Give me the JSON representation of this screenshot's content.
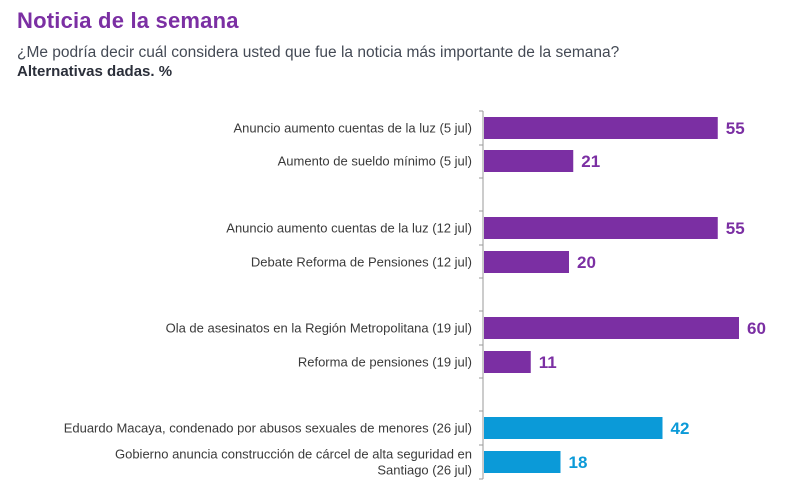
{
  "header": {
    "title": "Noticia de la semana",
    "question": "¿Me podría decir cuál considera usted que fue la noticia más importante de la semana?",
    "note": "Alternativas dadas. %"
  },
  "colors": {
    "title": "#7b2fa3",
    "purple_bar": "#7b2fa3",
    "blue_bar": "#0b9ad8",
    "axis": "#9a9a9a"
  },
  "chart_data": {
    "type": "bar",
    "orientation": "horizontal",
    "title": "Noticia de la semana",
    "subtitle": "¿Me podría decir cuál considera usted que fue la noticia más importante de la semana?",
    "xlabel": "",
    "ylabel": "",
    "unit": "%",
    "xlim": [
      0,
      60
    ],
    "grid": false,
    "legend": "none",
    "categories": [
      [
        "Anuncio aumento cuentas de la luz (5 jul)"
      ],
      [
        "Aumento de sueldo mínimo (5 jul)"
      ],
      [
        "Anuncio aumento cuentas de la luz (12 jul)"
      ],
      [
        "Debate Reforma de Pensiones (12 jul)"
      ],
      [
        "Ola de asesinatos en la Región Metropolitana (19 jul)"
      ],
      [
        "Reforma de pensiones (19 jul)"
      ],
      [
        "Eduardo Macaya, condenado por abusos sexuales de menores (26 jul)"
      ],
      [
        "Gobierno anuncia construcción de cárcel de alta seguridad en",
        "Santiago (26 jul)"
      ]
    ],
    "values": [
      55,
      21,
      55,
      20,
      60,
      11,
      42,
      18
    ],
    "groups": [
      "5 jul",
      "5 jul",
      "12 jul",
      "12 jul",
      "19 jul",
      "19 jul",
      "26 jul",
      "26 jul"
    ],
    "bar_colors": [
      "purple",
      "purple",
      "purple",
      "purple",
      "purple",
      "purple",
      "blue",
      "blue"
    ]
  }
}
